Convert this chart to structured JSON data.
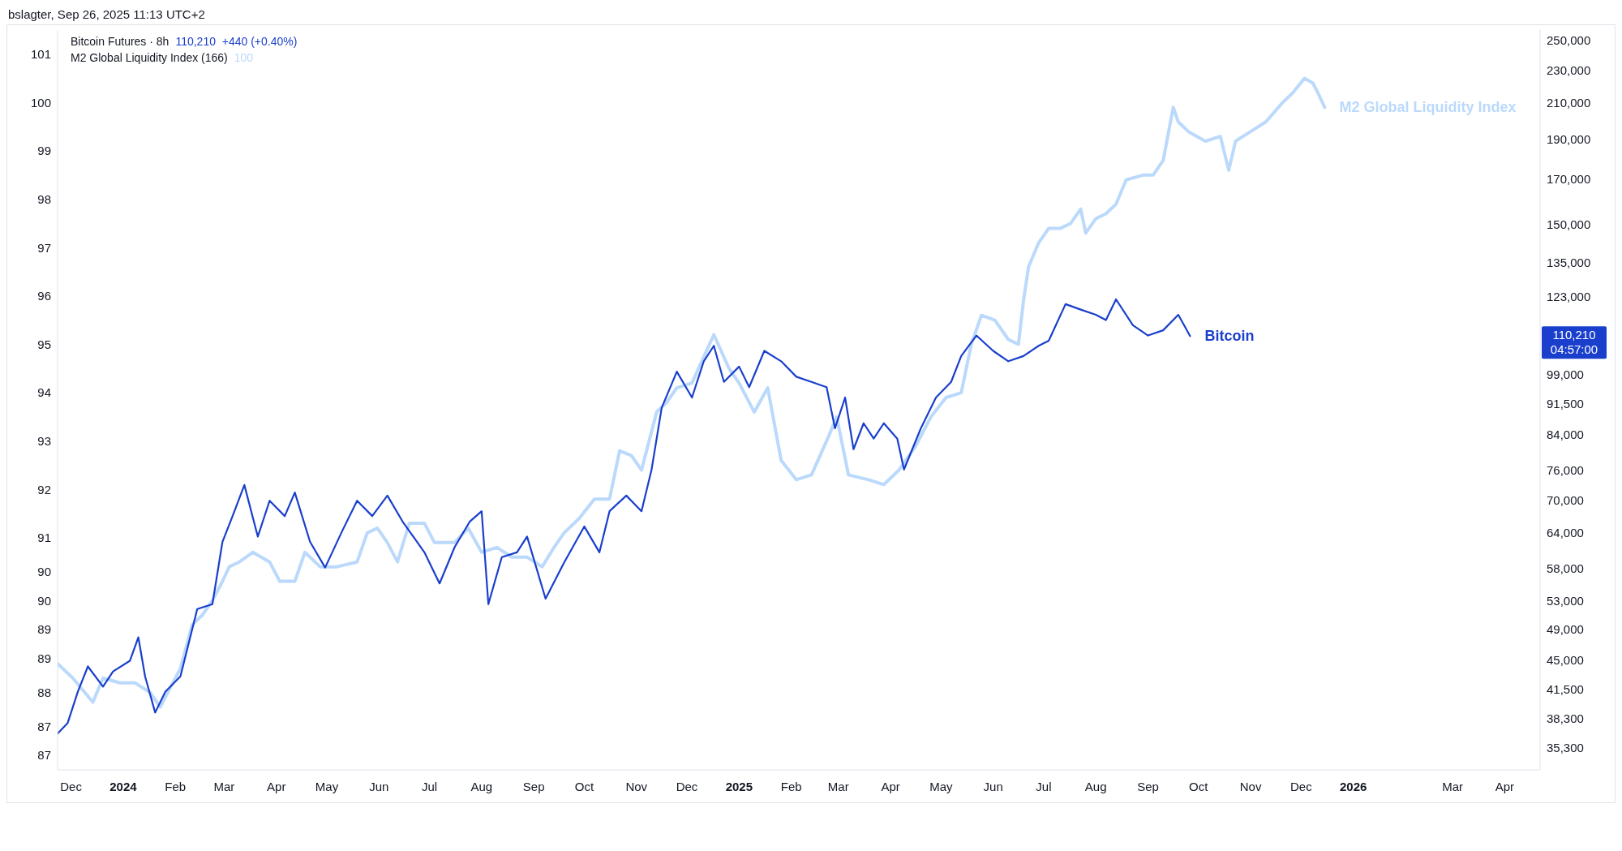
{
  "chart_data": {
    "type": "line",
    "log": "y2",
    "marker": "none",
    "line_style": "solid",
    "annotations": [
      "bslagter, Sep 26, 2025 11:13 UTC+2",
      "Bitcoin Futures · 8h",
      "110,210  +440 (+0.40%)",
      "M2 Global Liquidity Index (166)",
      "100",
      "110,210",
      "04:57:00"
    ],
    "xlim": [
      "2023-11-23",
      "2026-04-22"
    ],
    "xticks": [
      {
        "value": "2023-12-01",
        "label": "Dec"
      },
      {
        "value": "2024-01-01",
        "label": "2024"
      },
      {
        "value": "2024-02-01",
        "label": "Feb"
      },
      {
        "value": "2024-03-01",
        "label": "Mar"
      },
      {
        "value": "2024-04-01",
        "label": "Apr"
      },
      {
        "value": "2024-05-01",
        "label": "May"
      },
      {
        "value": "2024-06-01",
        "label": "Jun"
      },
      {
        "value": "2024-07-01",
        "label": "Jul"
      },
      {
        "value": "2024-08-01",
        "label": "Aug"
      },
      {
        "value": "2024-09-01",
        "label": "Sep"
      },
      {
        "value": "2024-10-01",
        "label": "Oct"
      },
      {
        "value": "2024-11-01",
        "label": "Nov"
      },
      {
        "value": "2024-12-01",
        "label": "Dec"
      },
      {
        "value": "2025-01-01",
        "label": "2025"
      },
      {
        "value": "2025-02-01",
        "label": "Feb"
      },
      {
        "value": "2025-03-01",
        "label": "Mar"
      },
      {
        "value": "2025-04-01",
        "label": "Apr"
      },
      {
        "value": "2025-05-01",
        "label": "May"
      },
      {
        "value": "2025-06-01",
        "label": "Jun"
      },
      {
        "value": "2025-07-01",
        "label": "Jul"
      },
      {
        "value": "2025-08-01",
        "label": "Aug"
      },
      {
        "value": "2025-09-01",
        "label": "Sep"
      },
      {
        "value": "2025-10-01",
        "label": "Oct"
      },
      {
        "value": "2025-11-01",
        "label": "Nov"
      },
      {
        "value": "2025-12-01",
        "label": "Dec"
      },
      {
        "value": "2026-01-01",
        "label": "2026"
      },
      {
        "value": "2026-03-01",
        "label": "Mar"
      },
      {
        "value": "2026-04-01",
        "label": "Apr"
      }
    ],
    "ylim": [
      86.2,
      101.5
    ],
    "yticks": [
      101,
      100,
      99,
      98,
      97,
      96,
      95,
      94,
      93,
      92,
      91,
      {
        "value": 90.3,
        "label": "90"
      },
      {
        "value": 89.7,
        "label": "90"
      },
      {
        "value": 89.1,
        "label": "89"
      },
      {
        "value": 88.5,
        "label": "89"
      },
      {
        "value": 87.8,
        "label": "88"
      },
      {
        "value": 87.1,
        "label": "87"
      },
      {
        "value": 86.5,
        "label": "87"
      }
    ],
    "y2lim": [
      33200,
      257000
    ],
    "y2ticks": [
      {
        "value": 250000,
        "label": "250,000"
      },
      {
        "value": 230000,
        "label": "230,000"
      },
      {
        "value": 210000,
        "label": "210,000"
      },
      {
        "value": 190000,
        "label": "190,000"
      },
      {
        "value": 170000,
        "label": "170,000"
      },
      {
        "value": 150000,
        "label": "150,000"
      },
      {
        "value": 135000,
        "label": "135,000"
      },
      {
        "value": 123000,
        "label": "123,000"
      },
      {
        "value": 99000,
        "label": "99,000"
      },
      {
        "value": 91500,
        "label": "91,500"
      },
      {
        "value": 84000,
        "label": "84,000"
      },
      {
        "value": 76000,
        "label": "76,000"
      },
      {
        "value": 70000,
        "label": "70,000"
      },
      {
        "value": 64000,
        "label": "64,000"
      },
      {
        "value": 58000,
        "label": "58,000"
      },
      {
        "value": 53000,
        "label": "53,000"
      },
      {
        "value": 49000,
        "label": "49,000"
      },
      {
        "value": 45000,
        "label": "45,000"
      },
      {
        "value": 41500,
        "label": "41,500"
      },
      {
        "value": 38300,
        "label": "38,300"
      },
      {
        "value": 35300,
        "label": "35,300"
      }
    ],
    "series": [
      {
        "name": "M2 Global Liquidity Index",
        "color": "#bbd9fb",
        "x": [
          "2023-11-23",
          "2023-12-02",
          "2023-12-14",
          "2023-12-20",
          "2023-12-30",
          "2024-01-08",
          "2024-01-17",
          "2024-01-23",
          "2024-01-29",
          "2024-02-04",
          "2024-02-11",
          "2024-02-17",
          "2024-02-23",
          "2024-02-29",
          "2024-03-04",
          "2024-03-10",
          "2024-03-18",
          "2024-03-28",
          "2024-04-03",
          "2024-04-12",
          "2024-04-18",
          "2024-04-27",
          "2024-05-07",
          "2024-05-19",
          "2024-05-25",
          "2024-05-31",
          "2024-06-06",
          "2024-06-12",
          "2024-06-19",
          "2024-06-28",
          "2024-07-04",
          "2024-07-16",
          "2024-07-24",
          "2024-08-01",
          "2024-08-10",
          "2024-08-19",
          "2024-08-28",
          "2024-09-06",
          "2024-09-13",
          "2024-09-19",
          "2024-09-28",
          "2024-10-07",
          "2024-10-16",
          "2024-10-22",
          "2024-10-29",
          "2024-11-04",
          "2024-11-13",
          "2024-11-19",
          "2024-11-25",
          "2024-12-04",
          "2024-12-17",
          "2024-12-26",
          "2025-01-01",
          "2025-01-10",
          "2025-01-18",
          "2025-01-26",
          "2025-02-04",
          "2025-02-13",
          "2025-02-22",
          "2025-02-28",
          "2025-03-07",
          "2025-03-19",
          "2025-03-28",
          "2025-04-06",
          "2025-04-16",
          "2025-04-25",
          "2025-05-04",
          "2025-05-13",
          "2025-05-19",
          "2025-05-25",
          "2025-06-02",
          "2025-06-10",
          "2025-06-16",
          "2025-06-19",
          "2025-06-22",
          "2025-06-28",
          "2025-07-04",
          "2025-07-11",
          "2025-07-17",
          "2025-07-23",
          "2025-07-26",
          "2025-08-01",
          "2025-08-07",
          "2025-08-13",
          "2025-08-19",
          "2025-08-29",
          "2025-09-04",
          "2025-09-10",
          "2025-09-16",
          "2025-09-19",
          "2025-09-25",
          "2025-10-05",
          "2025-10-14",
          "2025-10-19",
          "2025-10-23",
          "2025-11-01",
          "2025-11-10",
          "2025-11-20",
          "2025-11-26",
          "2025-12-03",
          "2025-12-08",
          "2025-12-11",
          "2025-12-15"
        ],
        "values": [
          88.4,
          88.1,
          87.6,
          88.1,
          88.0,
          88.0,
          87.8,
          87.5,
          87.9,
          88.3,
          89.2,
          89.4,
          89.7,
          90.1,
          90.4,
          90.5,
          90.7,
          90.5,
          90.1,
          90.1,
          90.7,
          90.4,
          90.4,
          90.5,
          91.1,
          91.2,
          90.9,
          90.5,
          91.3,
          91.3,
          90.9,
          90.9,
          91.2,
          90.7,
          90.8,
          90.6,
          90.6,
          90.4,
          90.8,
          91.1,
          91.4,
          91.8,
          91.8,
          92.8,
          92.7,
          92.4,
          93.6,
          93.8,
          94.1,
          94.2,
          95.2,
          94.5,
          94.2,
          93.6,
          94.1,
          92.6,
          92.2,
          92.3,
          93.0,
          93.5,
          92.3,
          92.2,
          92.1,
          92.4,
          92.9,
          93.5,
          93.9,
          94.0,
          95.0,
          95.6,
          95.5,
          95.1,
          95.0,
          95.9,
          96.6,
          97.1,
          97.4,
          97.4,
          97.5,
          97.8,
          97.3,
          97.6,
          97.7,
          97.9,
          98.4,
          98.5,
          98.5,
          98.8,
          99.9,
          99.6,
          99.4,
          99.2,
          99.3,
          98.6,
          99.2,
          99.4,
          99.6,
          100.0,
          100.2,
          100.5,
          100.4,
          100.2,
          99.9
        ]
      },
      {
        "name": "Bitcoin",
        "color": "#1a3fcc",
        "axis": "y2",
        "x": [
          "2023-11-23",
          "2023-11-29",
          "2023-12-05",
          "2023-12-11",
          "2023-12-20",
          "2023-12-26",
          "2024-01-05",
          "2024-01-10",
          "2024-01-14",
          "2024-01-20",
          "2024-01-26",
          "2024-02-04",
          "2024-02-14",
          "2024-02-23",
          "2024-02-29",
          "2024-03-06",
          "2024-03-13",
          "2024-03-21",
          "2024-03-28",
          "2024-04-06",
          "2024-04-12",
          "2024-04-21",
          "2024-04-30",
          "2024-05-10",
          "2024-05-19",
          "2024-05-28",
          "2024-06-06",
          "2024-06-15",
          "2024-06-28",
          "2024-07-07",
          "2024-07-16",
          "2024-07-25",
          "2024-08-01",
          "2024-08-05",
          "2024-08-13",
          "2024-08-22",
          "2024-08-28",
          "2024-09-08",
          "2024-09-19",
          "2024-10-01",
          "2024-10-10",
          "2024-10-16",
          "2024-10-26",
          "2024-11-04",
          "2024-11-10",
          "2024-11-16",
          "2024-11-25",
          "2024-12-04",
          "2024-12-11",
          "2024-12-17",
          "2024-12-23",
          "2025-01-01",
          "2025-01-07",
          "2025-01-16",
          "2025-01-26",
          "2025-02-04",
          "2025-02-13",
          "2025-02-22",
          "2025-02-27",
          "2025-03-05",
          "2025-03-10",
          "2025-03-16",
          "2025-03-22",
          "2025-03-28",
          "2025-04-05",
          "2025-04-09",
          "2025-04-19",
          "2025-04-28",
          "2025-05-07",
          "2025-05-13",
          "2025-05-22",
          "2025-06-01",
          "2025-06-10",
          "2025-06-19",
          "2025-06-28",
          "2025-07-04",
          "2025-07-14",
          "2025-07-23",
          "2025-08-01",
          "2025-08-07",
          "2025-08-13",
          "2025-08-23",
          "2025-09-01",
          "2025-09-10",
          "2025-09-19",
          "2025-09-26"
        ],
        "values": [
          36700,
          37800,
          41200,
          44200,
          41800,
          43600,
          44900,
          47900,
          43000,
          38900,
          41200,
          43000,
          51800,
          52500,
          62400,
          67000,
          73000,
          63300,
          69900,
          67000,
          71500,
          62400,
          58100,
          64200,
          69900,
          67000,
          70900,
          66000,
          60600,
          55600,
          61500,
          66000,
          67900,
          52500,
          59800,
          60600,
          63300,
          53300,
          58900,
          65100,
          60600,
          67900,
          70900,
          67900,
          76200,
          90400,
          99900,
          93000,
          102800,
          107300,
          97100,
          101300,
          95700,
          105800,
          102800,
          98500,
          97100,
          95700,
          85400,
          93000,
          80600,
          86600,
          83000,
          86600,
          83000,
          76200,
          85400,
          93000,
          97100,
          104300,
          110400,
          105800,
          102800,
          104300,
          107300,
          108800,
          120400,
          118600,
          116900,
          115200,
          122000,
          113600,
          110400,
          112000,
          116900,
          110210
        ]
      }
    ]
  }
}
